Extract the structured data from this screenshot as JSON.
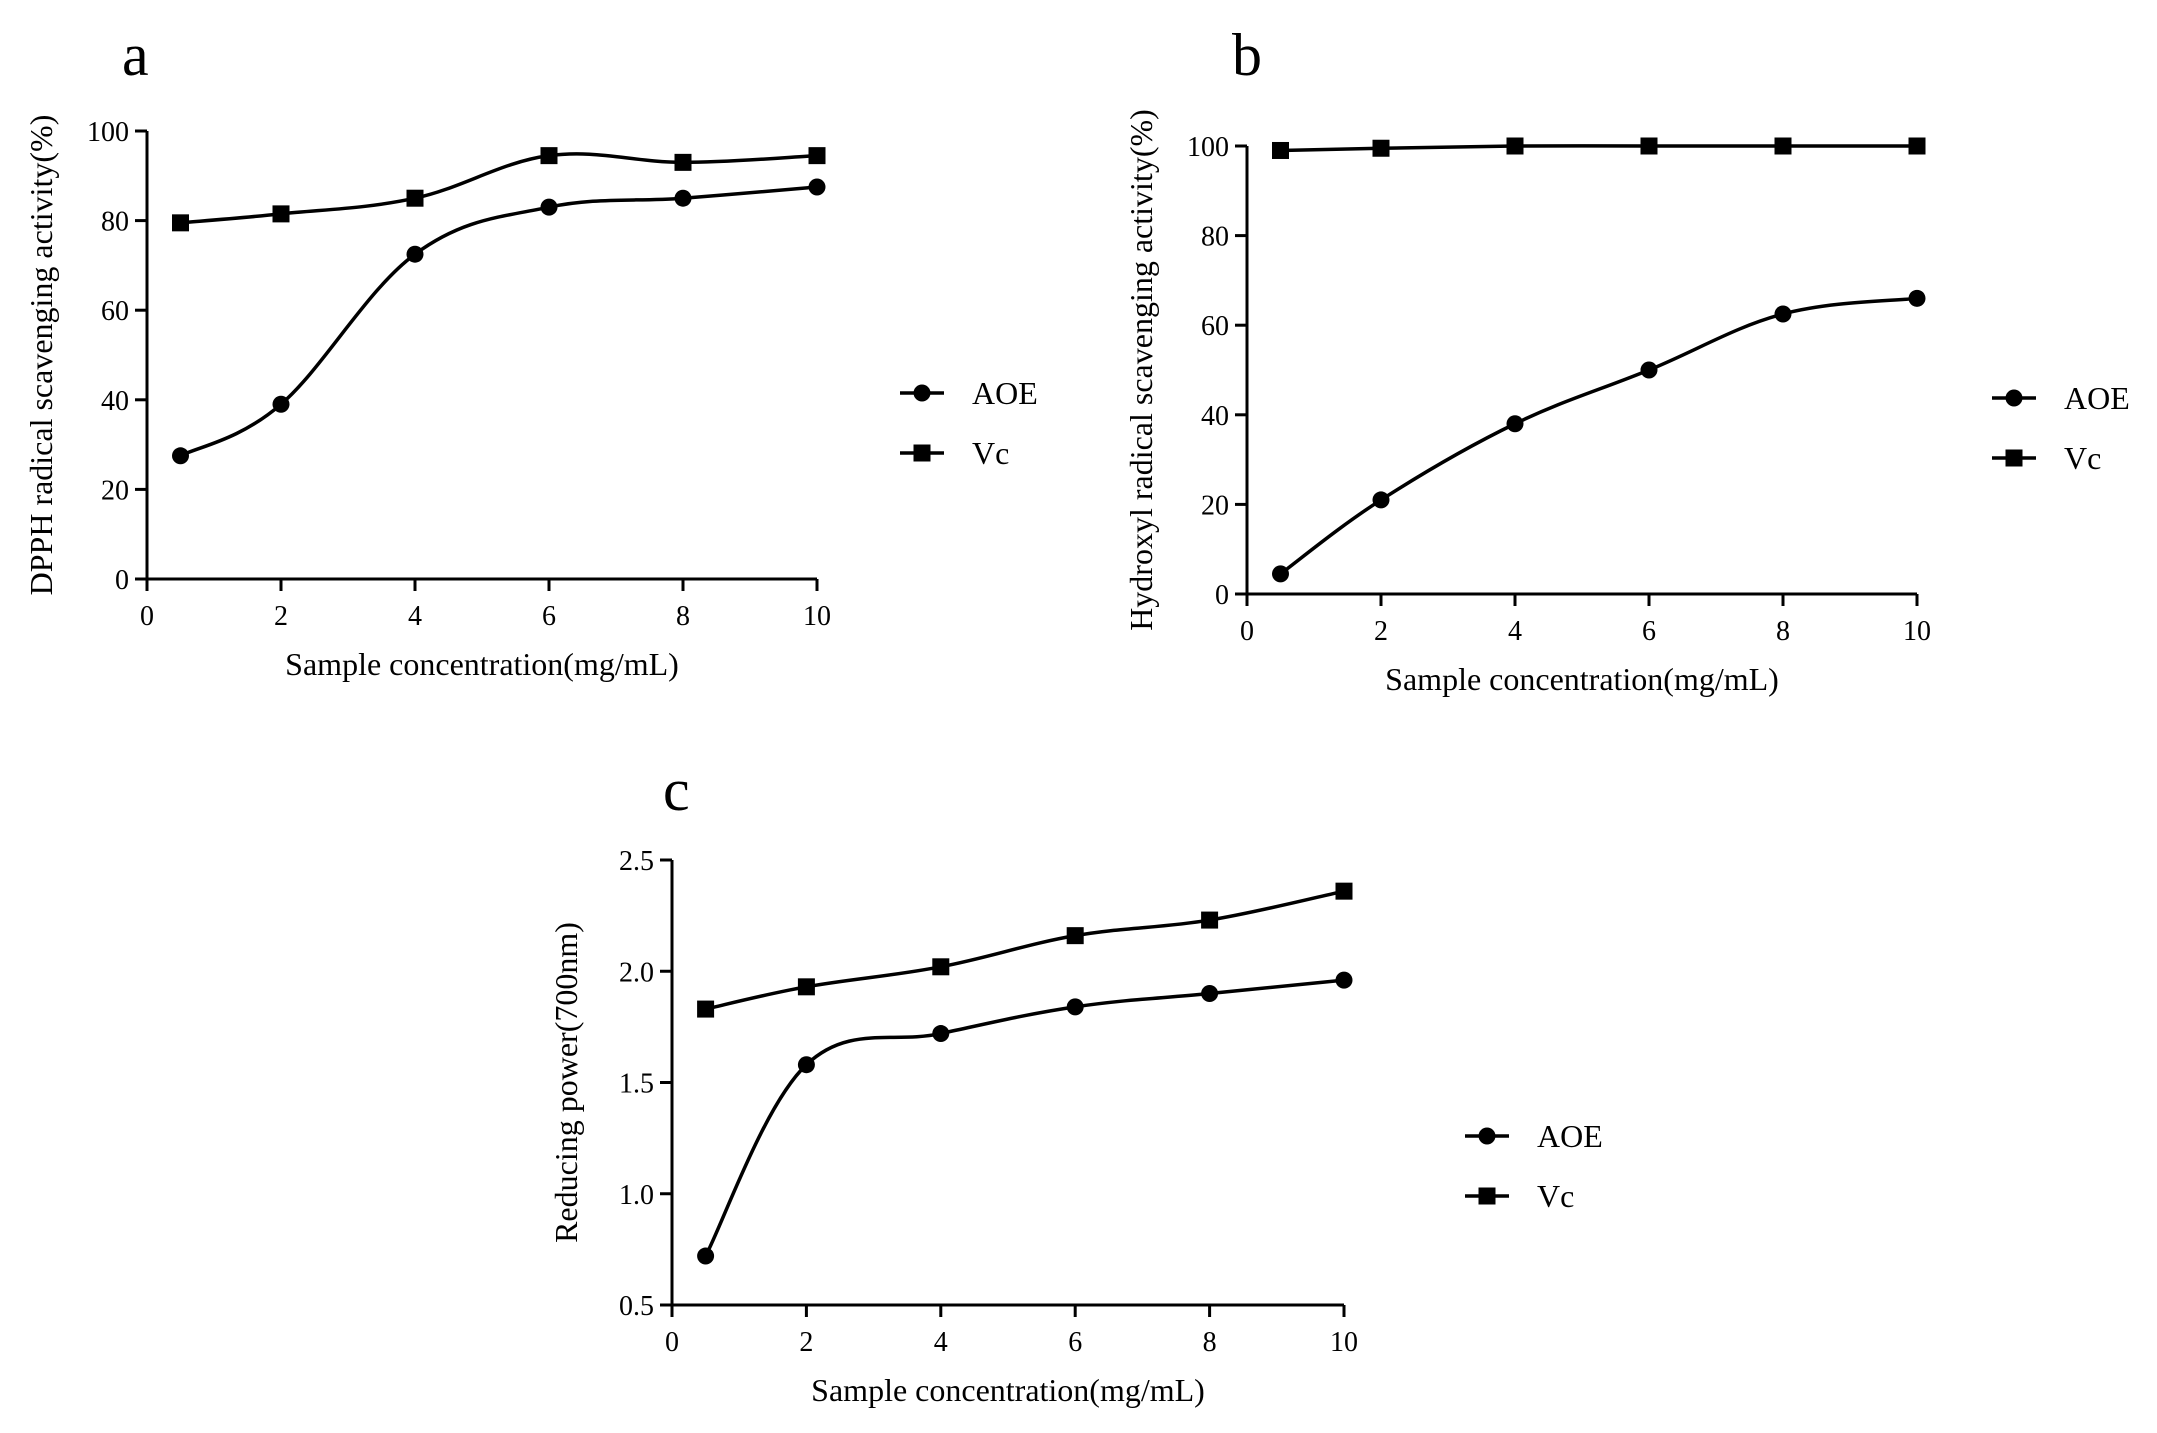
{
  "colors": {
    "ink": "#000000",
    "background": "#ffffff"
  },
  "chart_data": [
    {
      "panel": "a",
      "type": "line",
      "xlabel": "Sample concentration(mg/mL)",
      "ylabel": "DPPH radical scavenging activity(%)",
      "xlim": [
        0,
        10
      ],
      "ylim": [
        0,
        100
      ],
      "xticks": [
        0,
        2,
        4,
        6,
        8,
        10
      ],
      "yticks": [
        0,
        20,
        40,
        60,
        80,
        100
      ],
      "x": [
        0.5,
        2,
        4,
        6,
        8,
        10
      ],
      "series": [
        {
          "name": "AOE",
          "marker": "circle",
          "values": [
            27.5,
            39,
            72.5,
            83,
            85,
            87.5
          ]
        },
        {
          "name": "Vc",
          "marker": "square",
          "values": [
            79.5,
            81.5,
            85,
            94.5,
            93,
            94.5
          ]
        }
      ],
      "legend": "right"
    },
    {
      "panel": "b",
      "type": "line",
      "xlabel": "Sample concentration(mg/mL)",
      "ylabel": "Hydroxyl radical scavenging activity(%)",
      "xlim": [
        0,
        10
      ],
      "ylim": [
        0,
        100
      ],
      "xticks": [
        0,
        2,
        4,
        6,
        8,
        10
      ],
      "yticks": [
        0,
        20,
        40,
        60,
        80,
        100
      ],
      "x": [
        0.5,
        2,
        4,
        6,
        8,
        10
      ],
      "series": [
        {
          "name": "AOE",
          "marker": "circle",
          "values": [
            4.5,
            21,
            38,
            50,
            62.5,
            66
          ]
        },
        {
          "name": "Vc",
          "marker": "square",
          "values": [
            99,
            99.5,
            100,
            100,
            100,
            100
          ]
        }
      ],
      "legend": "right"
    },
    {
      "panel": "c",
      "type": "line",
      "xlabel": "Sample concentration(mg/mL)",
      "ylabel": "Reducing power(700nm)",
      "xlim": [
        0,
        10
      ],
      "ylim": [
        0.5,
        2.5
      ],
      "xticks": [
        0,
        2,
        4,
        6,
        8,
        10
      ],
      "yticks": [
        0.5,
        1.0,
        1.5,
        2.0,
        2.5
      ],
      "ytick_labels": [
        "0.5",
        "1.0",
        "1.5",
        "2.0",
        "2.5"
      ],
      "x": [
        0.5,
        2,
        4,
        6,
        8,
        10
      ],
      "series": [
        {
          "name": "AOE",
          "marker": "circle",
          "values": [
            0.72,
            1.58,
            1.72,
            1.84,
            1.9,
            1.96
          ]
        },
        {
          "name": "Vc",
          "marker": "square",
          "values": [
            1.83,
            1.93,
            2.02,
            2.16,
            2.23,
            2.36
          ]
        }
      ],
      "legend": "right"
    }
  ]
}
